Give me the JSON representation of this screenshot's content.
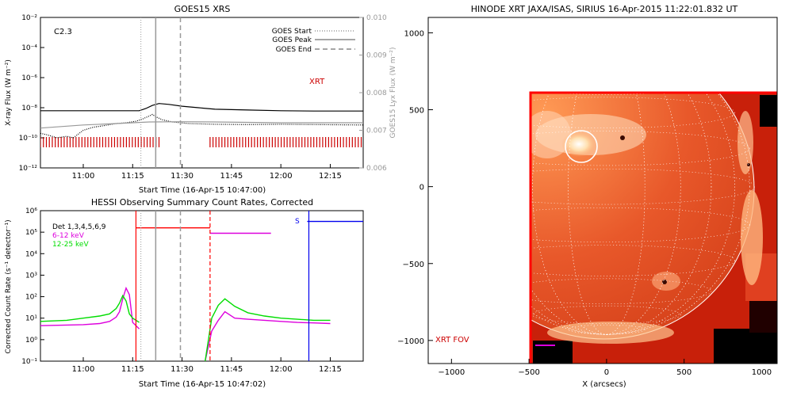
{
  "chart_data": [
    {
      "type": "line",
      "title": "GOES15 XRS",
      "xlabel": "Start Time (16-Apr-15 10:47:00)",
      "ylabel": "X-ray Flux (W m⁻²)",
      "y2label": "GOES15 Lyx Flux (W m⁻²)",
      "xticks": [
        "11:00",
        "11:15",
        "11:30",
        "11:45",
        "12:00",
        "12:15"
      ],
      "xlim_minutes": [
        47,
        145
      ],
      "yscale": "log",
      "ylim": [
        1e-12,
        0.01
      ],
      "yticks": [
        "10⁻¹²",
        "10⁻¹⁰",
        "10⁻⁸",
        "10⁻⁶",
        "10⁻⁴",
        "10⁻²"
      ],
      "y2lim": [
        0.006,
        0.01
      ],
      "y2ticks": [
        "0.006",
        "0.007",
        "0.008",
        "0.009",
        "0.010"
      ],
      "annotation_class": "C2.3",
      "annotation_xrt": "XRT",
      "legend": [
        {
          "label": "GOES Start",
          "style": "dotted"
        },
        {
          "label": "GOES Peak",
          "style": "solid"
        },
        {
          "label": "GOES End",
          "style": "dashed"
        }
      ],
      "events_minutes": {
        "start": 77.5,
        "peak": 82,
        "end": 89.5
      },
      "series": [
        {
          "key": "long",
          "color": "#000000",
          "t": [
            47,
            60,
            70,
            77,
            79,
            81,
            83,
            86,
            90,
            95,
            100,
            110,
            120,
            130,
            145
          ],
          "log": [
            -8.2,
            -8.2,
            -8.2,
            -8.2,
            -8.05,
            -7.85,
            -7.72,
            -7.78,
            -7.9,
            -8.0,
            -8.1,
            -8.15,
            -8.2,
            -8.22,
            -8.22
          ]
        },
        {
          "key": "short",
          "color": "#000000",
          "style": "dotted",
          "t": [
            47,
            49,
            52,
            55,
            57,
            60,
            63,
            66,
            70,
            73,
            76,
            78,
            80,
            81,
            82,
            84,
            87,
            92,
            100,
            110,
            120,
            130,
            145
          ],
          "log": [
            -9.7,
            -9.8,
            -10.0,
            -9.9,
            -10.0,
            -9.5,
            -9.3,
            -9.2,
            -9.05,
            -9.0,
            -8.9,
            -8.75,
            -8.55,
            -8.45,
            -8.6,
            -8.8,
            -8.95,
            -9.05,
            -9.1,
            -9.12,
            -9.1,
            -9.12,
            -9.15
          ]
        },
        {
          "key": "lyx",
          "color": "#999999",
          "t": [
            47,
            60,
            70,
            80,
            90,
            100,
            120,
            145
          ],
          "log": [
            -9.35,
            -9.15,
            -9.05,
            -8.95,
            -8.93,
            -8.95,
            -9.0,
            -9.0
          ]
        }
      ],
      "xrt_exposure_bars": {
        "color": "#cc0000",
        "ranges_minutes": [
          [
            47,
            83.5
          ],
          [
            98.5,
            145
          ]
        ]
      }
    },
    {
      "type": "line",
      "title": "HESSI Observing Summary Count Rates, Corrected",
      "xlabel": "Start Time (16-Apr-15 10:47:02)",
      "ylabel": "Corrected Count Rate (s⁻¹ detector⁻¹)",
      "xticks": [
        "11:00",
        "11:15",
        "11:30",
        "11:45",
        "12:00",
        "12:15"
      ],
      "xlim_minutes": [
        47,
        145
      ],
      "yscale": "log",
      "ylim": [
        0.1,
        1000000
      ],
      "yticks": [
        "10⁻¹",
        "10⁰",
        "10¹",
        "10²",
        "10³",
        "10⁴",
        "10⁵",
        "10⁶"
      ],
      "legend": [
        {
          "label": "Det 1,3,4,5,6,9",
          "color": "#000000"
        },
        {
          "label": "6-12 keV",
          "color": "#dd00dd"
        },
        {
          "label": "12-25 keV",
          "color": "#00dd00"
        }
      ],
      "marker_s": "S",
      "events_minutes": {
        "start": 77.5,
        "peak": 82,
        "end": 89.5
      },
      "series": [
        {
          "key": "6-12 keV",
          "color": "#dd00dd",
          "t": [
            47,
            55,
            60,
            65,
            68,
            70,
            71,
            72,
            73,
            74,
            75,
            77,
            82,
            97,
            99,
            101,
            103,
            106,
            110,
            115,
            120,
            125,
            130,
            135
          ],
          "log": [
            0.65,
            0.68,
            0.7,
            0.75,
            0.85,
            1.05,
            1.3,
            1.9,
            2.4,
            2.1,
            0.8,
            0.5,
            null,
            -1.0,
            0.4,
            0.9,
            1.3,
            1.0,
            0.95,
            0.9,
            0.85,
            0.8,
            0.78,
            0.75
          ]
        },
        {
          "key": "12-25 keV",
          "color": "#00dd00",
          "t": [
            47,
            55,
            60,
            65,
            68,
            70,
            71,
            72,
            73,
            74,
            75,
            77,
            82,
            97,
            99,
            101,
            103,
            106,
            110,
            115,
            120,
            125,
            130,
            135
          ],
          "log": [
            0.85,
            0.9,
            1.0,
            1.1,
            1.2,
            1.45,
            1.7,
            2.05,
            1.8,
            1.2,
            1.0,
            0.8,
            null,
            -1.0,
            1.0,
            1.6,
            1.9,
            1.55,
            1.25,
            1.1,
            1.0,
            0.95,
            0.9,
            0.9
          ]
        },
        {
          "key": "attenuator",
          "color": "#ff0000",
          "t": [
            76,
            98.5
          ],
          "log": [
            5.2,
            5.2
          ]
        },
        {
          "key": "att_low",
          "color": "#dd00dd",
          "t": [
            98.5,
            117
          ],
          "log": [
            4.95,
            4.95
          ]
        },
        {
          "key": "saa_high",
          "color": "#0000ee",
          "t": [
            128,
            145
          ],
          "log": [
            5.5,
            5.5
          ]
        }
      ],
      "vertical_lines": [
        {
          "t": 76,
          "color": "#ff0000",
          "style": "solid"
        },
        {
          "t": 98.5,
          "color": "#ff0000",
          "style": "dashed"
        },
        {
          "t": 128.5,
          "color": "#0000ee",
          "style": "solid"
        }
      ]
    },
    {
      "type": "heatmap",
      "title": "HINODE XRT JAXA/ISAS, SIRIUS 16-Apr-2015 11:22:01.832 UT",
      "xlabel": "X (arcsecs)",
      "xlim": [
        -1150,
        1100
      ],
      "ylim": [
        -1150,
        1100
      ],
      "xticks": [
        "−1000",
        "−500",
        "0",
        "500",
        "1000"
      ],
      "yticks": [
        "−1000",
        "−500",
        "0",
        "500",
        "1000"
      ],
      "fov_label": "XRT FOV",
      "solar_radius_arcsec": 955,
      "field_of_view": {
        "x": [
          -460,
          1100
        ],
        "y": [
          -1150,
          630
        ]
      },
      "flare_circle": {
        "cx": -155,
        "cy": 300,
        "r": 105
      }
    }
  ]
}
